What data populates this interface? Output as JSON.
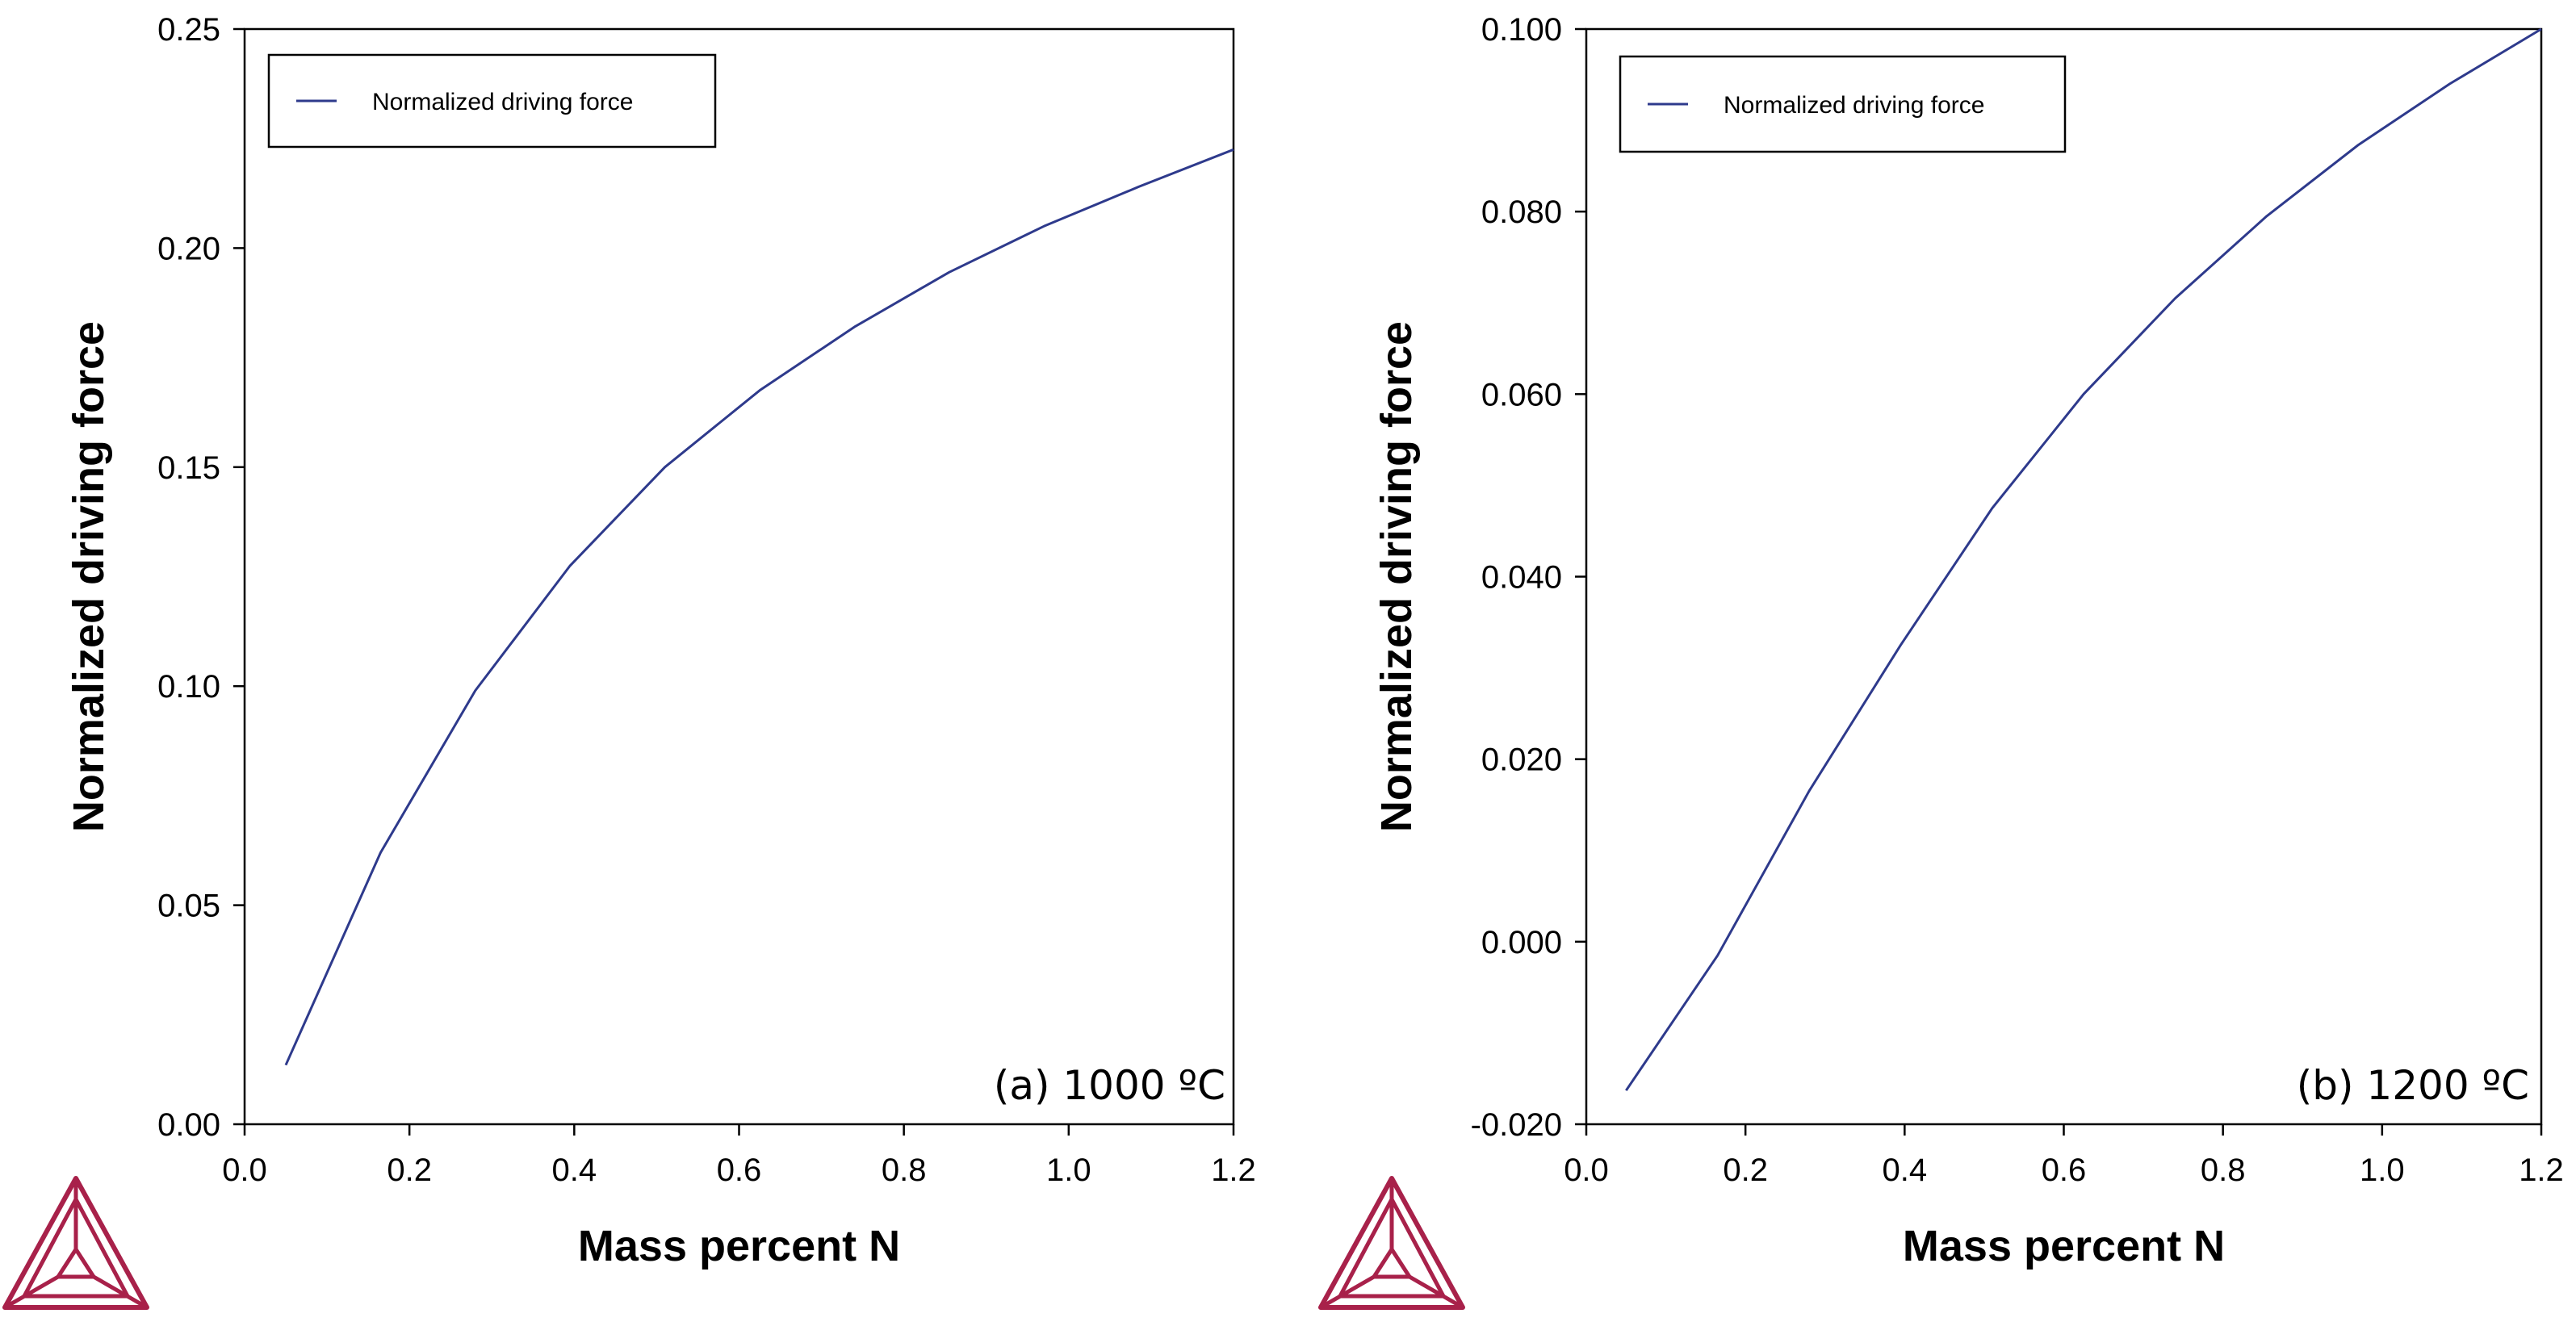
{
  "chart_data": [
    {
      "type": "line",
      "panel_label": "(a) 1000 ºC",
      "xlabel": "Mass percent N",
      "ylabel": "Normalized driving force",
      "xlim": [
        0.0,
        1.2
      ],
      "ylim": [
        0.0,
        0.25
      ],
      "x_ticks": [
        "0.0",
        "0.2",
        "0.4",
        "0.6",
        "0.8",
        "1.0",
        "1.2"
      ],
      "y_ticks": [
        "0.00",
        "0.05",
        "0.10",
        "0.15",
        "0.20",
        "0.25"
      ],
      "legend": {
        "position": "top-left",
        "entries": [
          "Normalized driving force"
        ]
      },
      "series": [
        {
          "name": "Normalized driving force",
          "color": "#2e3a8c",
          "x": [
            0.05,
            0.165,
            0.28,
            0.395,
            0.51,
            0.625,
            0.74,
            0.855,
            0.97,
            1.085,
            1.2
          ],
          "y": [
            0.0135,
            0.062,
            0.099,
            0.1275,
            0.15,
            0.1675,
            0.182,
            0.1945,
            0.205,
            0.214,
            0.2225
          ]
        }
      ]
    },
    {
      "type": "line",
      "panel_label": "(b) 1200 ºC",
      "xlabel": "Mass percent N",
      "ylabel": "Normalized driving force",
      "xlim": [
        0.0,
        1.2
      ],
      "ylim": [
        -0.02,
        0.1
      ],
      "x_ticks": [
        "0.0",
        "0.2",
        "0.4",
        "0.6",
        "0.8",
        "1.0",
        "1.2"
      ],
      "y_ticks": [
        "-0.020",
        "0.000",
        "0.020",
        "0.040",
        "0.060",
        "0.080",
        "0.100"
      ],
      "legend": {
        "position": "top-left",
        "entries": [
          "Normalized driving force"
        ]
      },
      "series": [
        {
          "name": "Normalized driving force",
          "color": "#2e3a8c",
          "x": [
            0.05,
            0.165,
            0.28,
            0.395,
            0.51,
            0.625,
            0.74,
            0.855,
            0.97,
            1.085,
            1.2
          ],
          "y": [
            -0.0163,
            -0.0015,
            0.0165,
            0.0325,
            0.0475,
            0.06,
            0.0705,
            0.0795,
            0.0873,
            0.094,
            0.1
          ]
        }
      ]
    }
  ],
  "colors": {
    "logo": "#a8214a",
    "axis": "#000000"
  },
  "icons": [
    "triangle-logo-icon",
    "triangle-logo-icon"
  ]
}
